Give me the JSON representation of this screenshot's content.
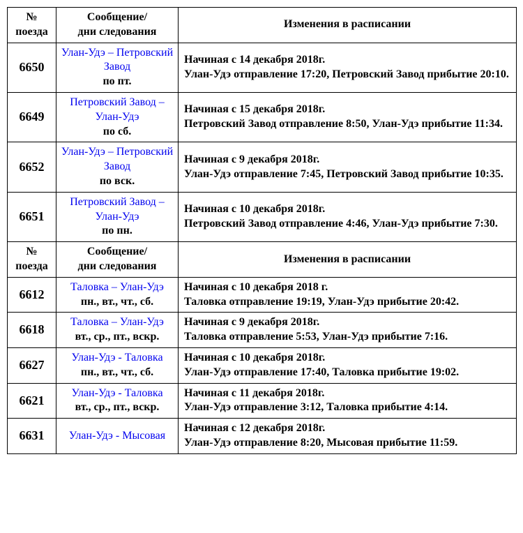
{
  "headers": {
    "num": "№ поезда",
    "route": "Сообщение/ дни следования",
    "change": "Изменения в расписании"
  },
  "rows1": [
    {
      "num": "6650",
      "route_link": "Улан-Удэ – Петровский Завод",
      "days": "по пт.",
      "change": "Начиная с 14 декабря 2018г.\nУлан-Удэ отправление 17:20, Петровский Завод прибытие 20:10."
    },
    {
      "num": "6649",
      "route_link": "Петровский Завод – Улан-Удэ",
      "days": "по сб.",
      "change": "Начиная с 15 декабря 2018г.\nПетровский Завод  отправление 8:50,  Улан-Удэ прибытие 11:34."
    },
    {
      "num": "6652",
      "route_link": "Улан-Удэ – Петровский Завод",
      "days": "по вск.",
      "change": "Начиная с 9 декабря 2018г.\nУлан-Удэ отправление 7:45,  Петровский Завод прибытие 10:35."
    },
    {
      "num": "6651",
      "route_link": "Петровский Завод – Улан-Удэ",
      "days": "по пн.",
      "change": "Начиная с 10 декабря 2018г.\nПетровский Завод  отправление 4:46,  Улан-Удэ прибытие 7:30."
    }
  ],
  "rows2": [
    {
      "num": "6612",
      "route_link": "Таловка – Улан-Удэ",
      "days": "пн., вт., чт., сб.",
      "change": "Начиная с 10 декабря 2018 г.\nТаловка отправление 19:19, Улан-Удэ прибытие 20:42."
    },
    {
      "num": "6618",
      "route_link": "Таловка – Улан-Удэ",
      "days": "вт., ср., пт., вскр.",
      "change": "Начиная с 9 декабря 2018г.\nТаловка отправление 5:53, Улан-Удэ прибытие 7:16."
    },
    {
      "num": "6627",
      "route_link": "Улан-Удэ - Таловка",
      "days": "пн., вт., чт., сб.",
      "change": "Начиная с 10 декабря 2018г.\nУлан-Удэ отправление 17:40, Таловка прибытие 19:02."
    },
    {
      "num": "6621",
      "route_link": "Улан-Удэ - Таловка",
      "days": "вт., ср., пт., вскр.",
      "change": "Начиная с 11 декабря 2018г.\nУлан-Удэ отправление 3:12, Таловка прибытие 4:14."
    },
    {
      "num": "6631",
      "route_link": "Улан-Удэ - Мысовая",
      "days": "",
      "change": "Начиная с 12 декабря 2018г.\nУлан-Удэ отправление 8:20, Мысовая прибытие 11:59."
    }
  ]
}
